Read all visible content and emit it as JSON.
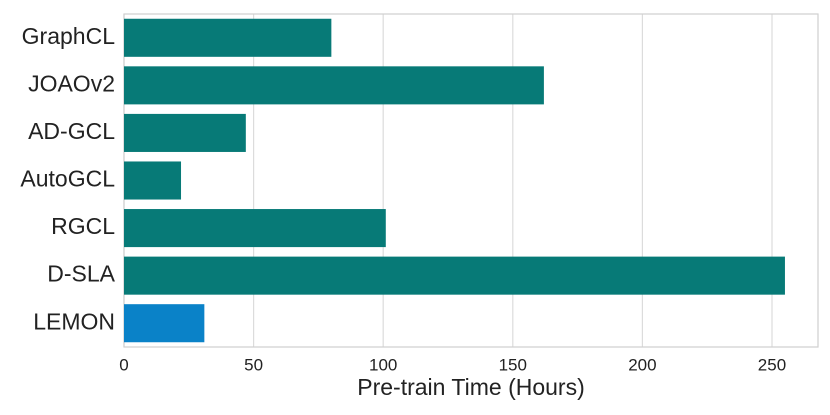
{
  "chart_data": {
    "type": "barh",
    "xlabel": "Pre-train Time (Hours)",
    "categories": [
      "GraphCL",
      "JOAOv2",
      "AD-GCL",
      "AutoGCL",
      "RGCL",
      "D-SLA",
      "LEMON"
    ],
    "values": [
      80,
      162,
      47,
      22,
      101,
      255,
      31
    ],
    "colors": [
      "#077a77",
      "#077a77",
      "#077a77",
      "#077a77",
      "#077a77",
      "#077a77",
      "#0a82c8"
    ],
    "xlim": [
      0,
      267.75
    ],
    "xticks": [
      0,
      50,
      100,
      150,
      200,
      250
    ],
    "grid": true
  }
}
